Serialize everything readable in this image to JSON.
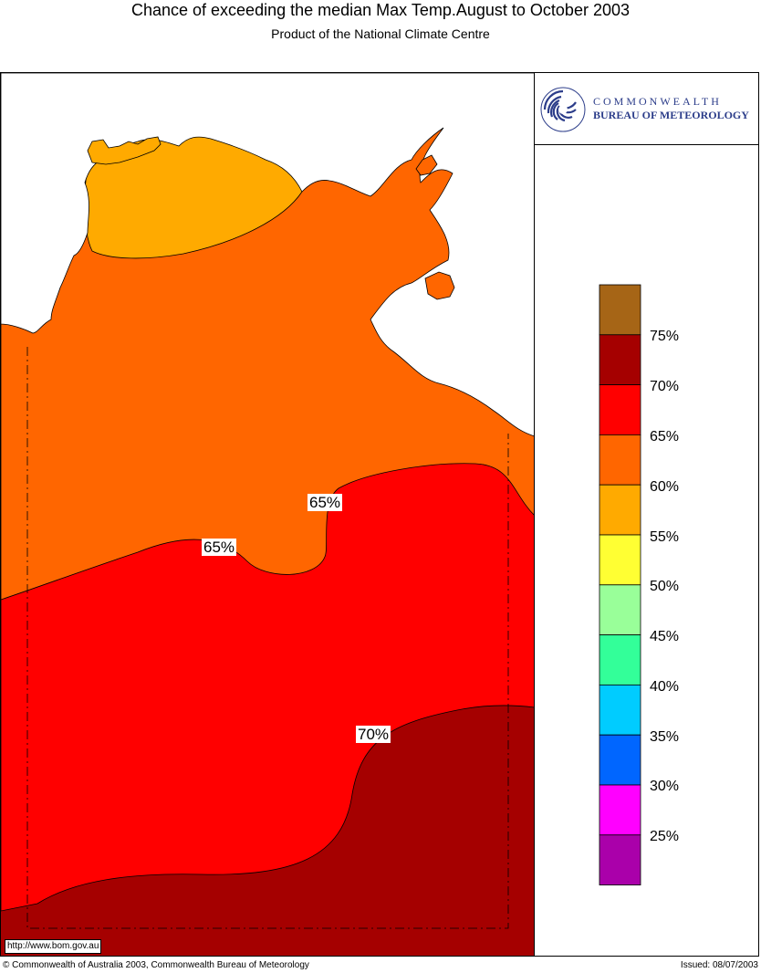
{
  "header": {
    "title": "Chance of exceeding the median Max Temp.August to October 2003",
    "subtitle": "Product of the National Climate Centre"
  },
  "logo": {
    "line1": "COMMONWEALTH",
    "line2": "BUREAU OF METEOROLOGY",
    "icon": "bom-swirl-icon"
  },
  "map": {
    "region_colors": {
      "55-60": "#ffaa00",
      "60-65": "#ff6600",
      "65-70": "#ff0000",
      "70-75": "#a50000"
    },
    "contour_labels": [
      "65%",
      "65%",
      "70%"
    ],
    "url": "http://www.bom.gov.au"
  },
  "legend": {
    "swatches": [
      {
        "color": "#a66516"
      },
      {
        "color": "#a50000"
      },
      {
        "color": "#ff0000"
      },
      {
        "color": "#ff6600"
      },
      {
        "color": "#ffaa00"
      },
      {
        "color": "#ffff33"
      },
      {
        "color": "#99ff99"
      },
      {
        "color": "#33ff99"
      },
      {
        "color": "#00ccff"
      },
      {
        "color": "#0066ff"
      },
      {
        "color": "#ff00ff"
      },
      {
        "color": "#aa00aa"
      }
    ],
    "labels": [
      "75%",
      "70%",
      "65%",
      "60%",
      "55%",
      "50%",
      "45%",
      "40%",
      "35%",
      "30%",
      "25%"
    ]
  },
  "footer": {
    "copyright": "© Commonwealth of Australia 2003, Commonwealth Bureau of Meteorology",
    "issued": "Issued: 08/07/2003"
  }
}
